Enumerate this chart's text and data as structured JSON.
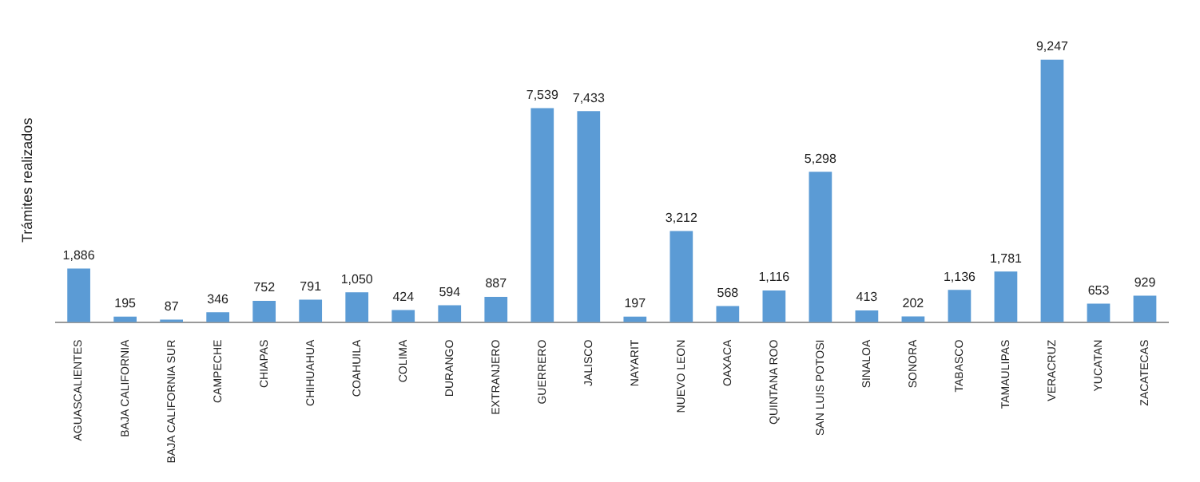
{
  "chart_data": {
    "type": "bar",
    "ylabel": "Trámites realizados",
    "categories": [
      "AGUASCALIENTES",
      "BAJA CALIFORNIA",
      "BAJA CALIFORNIA SUR",
      "CAMPECHE",
      "CHIAPAS",
      "CHIHUAHUA",
      "COAHUILA",
      "COLIMA",
      "DURANGO",
      "EXTRANJERO",
      "GUERRERO",
      "JALISCO",
      "NAYARIT",
      "NUEVO LEON",
      "OAXACA",
      "QUINTANA ROO",
      "SAN LUIS POTOSI",
      "SINALOA",
      "SONORA",
      "TABASCO",
      "TAMAULIPAS",
      "VERACRUZ",
      "YUCATAN",
      "ZACATECAS"
    ],
    "values": [
      1886,
      195,
      87,
      346,
      752,
      791,
      1050,
      424,
      594,
      887,
      7539,
      7433,
      197,
      3212,
      568,
      1116,
      5298,
      413,
      202,
      1136,
      1781,
      9247,
      653,
      929
    ],
    "value_labels": [
      "1,886",
      "195",
      "87",
      "346",
      "752",
      "791",
      "1,050",
      "424",
      "594",
      "887",
      "7,539",
      "7,433",
      "197",
      "3,212",
      "568",
      "1,116",
      "5,298",
      "413",
      "202",
      "1,136",
      "1,781",
      "9,247",
      "653",
      "929"
    ],
    "color": "#5b9bd5",
    "grid": false,
    "legend": false
  }
}
